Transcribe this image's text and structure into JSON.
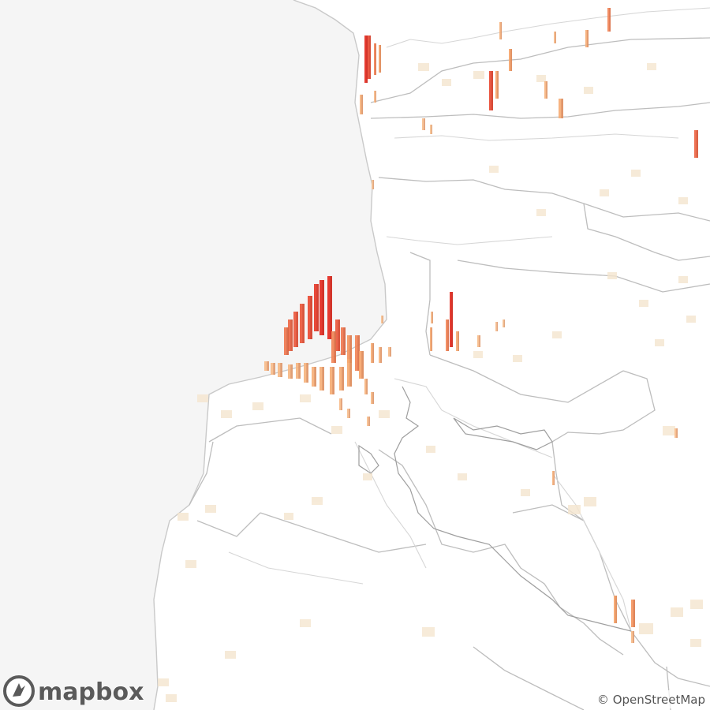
{
  "map": {
    "style": "light basemap, 3D extruded columns",
    "palette": {
      "ocean": "#f5f5f5",
      "land": "#ffffff",
      "boundary": "#bdbdbd",
      "road": "#cfcfcf",
      "low_density": "#f5e6cf",
      "mid_density": "#f6a56b",
      "high_density": "#e42a1f"
    },
    "legend": null
  },
  "brand": {
    "logo_text": "mapbox",
    "logo_icon": "mapbox-compass-icon"
  },
  "attribution": {
    "symbol": "©",
    "text": "OpenStreetMap"
  }
}
